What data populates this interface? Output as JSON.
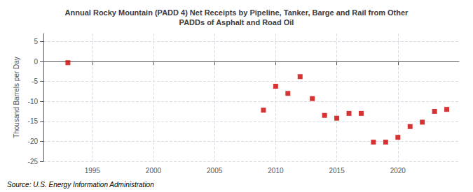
{
  "chart_data": {
    "type": "scatter",
    "title": "Annual Rocky Mountain (PADD 4) Net Receipts by Pipeline, Tanker, Barge and Rail from Other\nPADDs of Asphalt and Road Oil",
    "ylabel": "Thousand Barrels per Day",
    "source": "Source: U.S. Energy Information Administration",
    "x": [
      1993,
      2009,
      2010,
      2011,
      2012,
      2013,
      2014,
      2015,
      2016,
      2017,
      2018,
      2019,
      2020,
      2021,
      2022,
      2023,
      2024
    ],
    "values": [
      -0.3,
      -12.2,
      -6.2,
      -8.0,
      -3.8,
      -9.3,
      -13.5,
      -14.2,
      -13.0,
      -13.0,
      -20.2,
      -20.2,
      -19.0,
      -16.3,
      -15.2,
      -12.5,
      -12.0
    ],
    "color": "#cc0000",
    "marker": "square",
    "xlim": [
      1991,
      2025
    ],
    "xticks": [
      1995,
      2000,
      2005,
      2010,
      2015,
      2020
    ],
    "ylim": [
      -25,
      7
    ],
    "yticks": [
      5,
      0,
      -5,
      -10,
      -15,
      -20,
      -25
    ],
    "grid": true
  }
}
